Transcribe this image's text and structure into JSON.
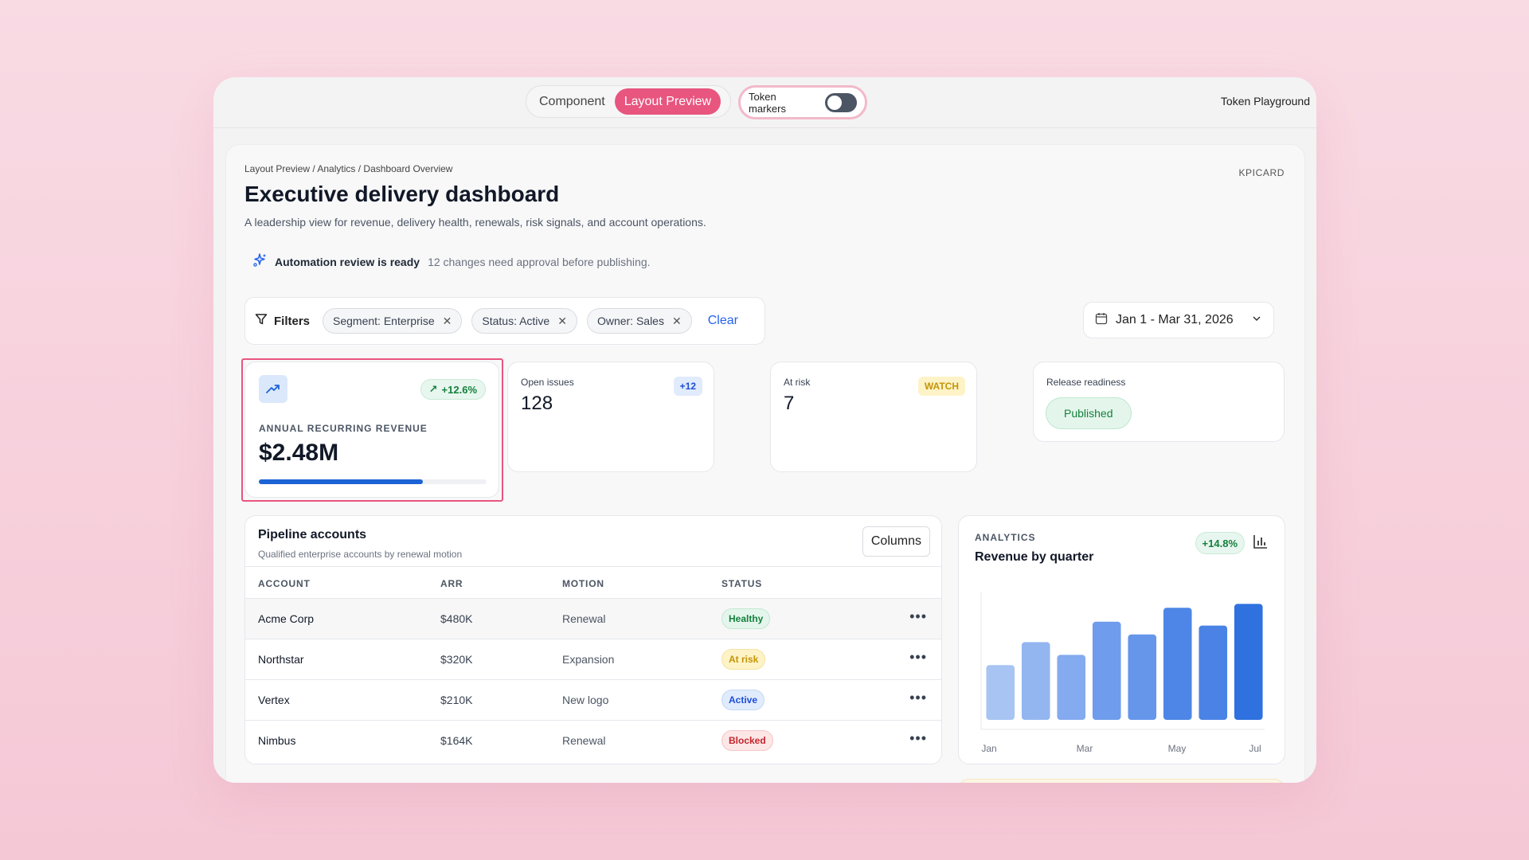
{
  "topbar": {
    "tabs": [
      {
        "label": "Component",
        "active": false
      },
      {
        "label": "Layout Preview",
        "active": true
      }
    ],
    "token_markers_label": "Token markers",
    "token_markers_on": false,
    "app_name": "Token Playground"
  },
  "header": {
    "breadcrumb": "Layout Preview / Analytics / Dashboard Overview",
    "tag": "KPICARD",
    "title": "Executive delivery dashboard",
    "description": "A leadership view for revenue, delivery health, renewals, risk signals, and account operations."
  },
  "automation": {
    "icon": "sparkles-icon",
    "title": "Automation review is ready",
    "detail": "12 changes need approval before publishing."
  },
  "filters": {
    "label": "Filters",
    "chips": [
      "Segment: Enterprise",
      "Status: Active",
      "Owner: Sales"
    ],
    "clear_label": "Clear"
  },
  "date_range": {
    "value": "Jan 1 - Mar 31, 2026"
  },
  "kpi_main": {
    "label": "ANNUAL RECURRING REVENUE",
    "value": "$2.48M",
    "delta": "+12.6%",
    "progress": 0.72,
    "accent": "#1d63d6"
  },
  "kpis": [
    {
      "label": "Open issues",
      "value": "128",
      "badge": "+12"
    },
    {
      "label": "At risk",
      "value": "7",
      "badge": "WATCH"
    },
    {
      "label": "Release readiness",
      "status": "Published"
    }
  ],
  "table": {
    "title": "Pipeline accounts",
    "subtitle": "Qualified enterprise accounts by renewal motion",
    "columns_button": "Columns",
    "headers": [
      "ACCOUNT",
      "ARR",
      "MOTION",
      "STATUS"
    ],
    "rows": [
      {
        "account": "Acme Corp",
        "arr": "$480K",
        "motion": "Renewal",
        "status": "Healthy"
      },
      {
        "account": "Northstar",
        "arr": "$320K",
        "motion": "Expansion",
        "status": "At risk"
      },
      {
        "account": "Vertex",
        "arr": "$210K",
        "motion": "New logo",
        "status": "Active"
      },
      {
        "account": "Nimbus",
        "arr": "$164K",
        "motion": "Renewal",
        "status": "Blocked"
      }
    ]
  },
  "analytics": {
    "label": "ANALYTICS",
    "title": "Revenue by quarter",
    "delta": "+14.8%"
  },
  "chart_data": {
    "type": "bar",
    "categories": [
      "Jan",
      "",
      "Mar",
      "",
      "May",
      "",
      "Jul",
      ""
    ],
    "x_tick_labels": [
      "Jan",
      "Mar",
      "May",
      "Jul"
    ],
    "values": [
      43,
      61,
      51,
      77,
      67,
      88,
      74,
      91
    ],
    "ylim": [
      0,
      100
    ],
    "grid": false,
    "colors": [
      "#a7c4f3",
      "#93b6f1",
      "#84aaef",
      "#6f9cec",
      "#6596ea",
      "#4d86e6",
      "#4a83e5",
      "#2f71df"
    ]
  }
}
